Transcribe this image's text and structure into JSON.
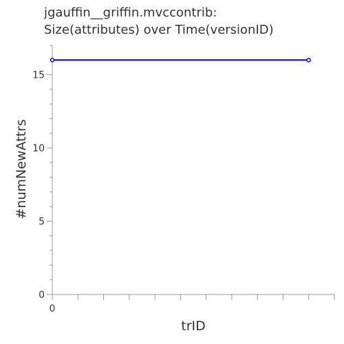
{
  "chart_data": {
    "type": "line",
    "title": [
      "jgauffin__griffin.mvccontrib:",
      "Size(attributes) over Time(versionID)"
    ],
    "xlabel": "trID",
    "ylabel": "#numNewAttrs",
    "xlim": [
      0,
      11
    ],
    "ylim": [
      0,
      17
    ],
    "x_tick_labels": [
      "0"
    ],
    "y_tick_labels": [
      "0",
      "5",
      "10",
      "15"
    ],
    "y_ticks": [
      0,
      5,
      10,
      15
    ],
    "grid": false,
    "series": [
      {
        "color": "#0000cc",
        "x": [
          0,
          10
        ],
        "y": [
          16,
          16
        ]
      }
    ]
  }
}
